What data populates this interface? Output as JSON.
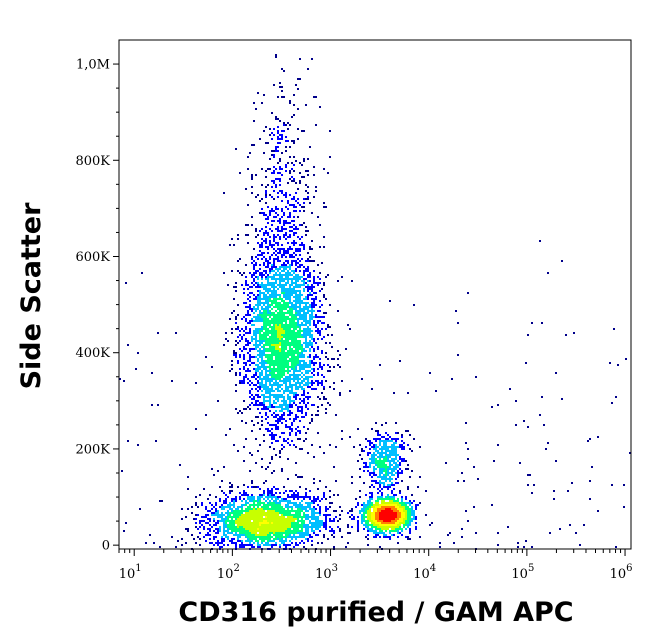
{
  "chart_data": {
    "type": "scatter",
    "style": "density dot plot (flow cytometry)",
    "xlabel": "CD316 purified / GAM APC",
    "ylabel": "Side Scatter",
    "x_scale": "log",
    "xlim": [
      7,
      1150000
    ],
    "ylim": [
      -8000,
      1050000
    ],
    "x_ticks": [
      {
        "value": 10,
        "base": "10",
        "exp": "1"
      },
      {
        "value": 100,
        "base": "10",
        "exp": "2"
      },
      {
        "value": 1000,
        "base": "10",
        "exp": "3"
      },
      {
        "value": 10000,
        "base": "10",
        "exp": "4"
      },
      {
        "value": 100000,
        "base": "10",
        "exp": "5"
      },
      {
        "value": 1000000,
        "base": "10",
        "exp": "6"
      }
    ],
    "y_ticks": [
      {
        "value": 0,
        "label": "0"
      },
      {
        "value": 200000,
        "label": "200K"
      },
      {
        "value": 400000,
        "label": "400K"
      },
      {
        "value": 600000,
        "label": "600K"
      },
      {
        "value": 800000,
        "label": "800K"
      },
      {
        "value": 1000000,
        "label": "1,0M"
      }
    ],
    "grid": false,
    "legend": "none",
    "colormap": [
      "#00008b",
      "#0000ff",
      "#00bfff",
      "#00ff80",
      "#c8ff00",
      "#ffff00",
      "#ff8000",
      "#ff0000"
    ],
    "populations": [
      {
        "x_center": 320,
        "x_log_sd": 0.2,
        "y_center": 430000,
        "y_sd": 95000,
        "count": 3600
      },
      {
        "x_center": 330,
        "x_log_sd": 0.16,
        "y_center": 720000,
        "y_sd": 120000,
        "count": 500
      },
      {
        "x_center": 3800,
        "x_log_sd": 0.12,
        "y_center": 62000,
        "y_sd": 17000,
        "count": 1700
      },
      {
        "x_center": 3600,
        "x_log_sd": 0.11,
        "y_center": 175000,
        "y_sd": 32000,
        "count": 500
      },
      {
        "x_center": 220,
        "x_log_sd": 0.3,
        "y_center": 50000,
        "y_sd": 28000,
        "count": 2600
      }
    ]
  }
}
